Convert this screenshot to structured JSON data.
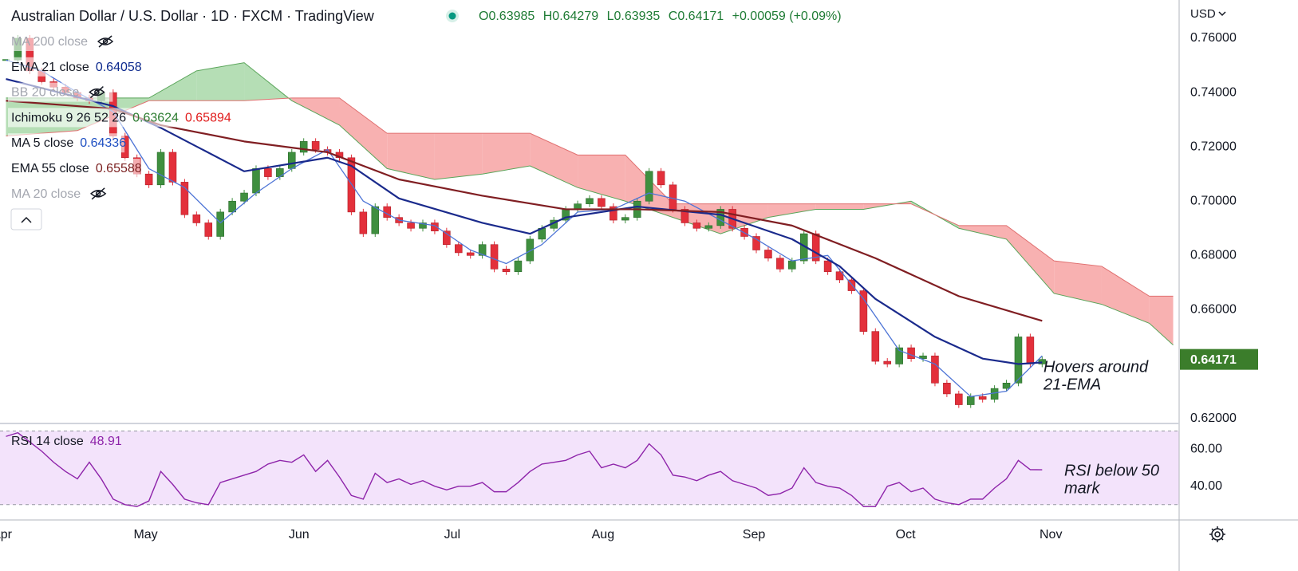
{
  "header": {
    "title": "Australian Dollar / U.S. Dollar · 1D · FXCM · TradingView",
    "ohlc": [
      "O0.63985",
      "H0.64279",
      "L0.63935",
      "C0.64171",
      "+0.00059 (+0.09%)"
    ],
    "currency": "USD"
  },
  "legend": [
    {
      "name": "MA 200 close",
      "hidden": true
    },
    {
      "name": "EMA 21 close",
      "values": [
        "0.64058"
      ],
      "colors": [
        "#0d2a8e"
      ]
    },
    {
      "name": "BB 20 close",
      "hidden": true
    },
    {
      "name": "Ichimoku 9 26 52 26",
      "values": [
        "0.63624",
        "0.65894"
      ],
      "colors": [
        "#2e7d32",
        "#e01b1b"
      ]
    },
    {
      "name": "MA 5 close",
      "values": [
        "0.64336"
      ],
      "colors": [
        "#1e4fc2"
      ]
    },
    {
      "name": "EMA 55 close",
      "values": [
        "0.65588"
      ],
      "colors": [
        "#7b1f1f"
      ]
    },
    {
      "name": "MA 20 close",
      "hidden": true
    }
  ],
  "chart_data": [
    {
      "type": "candlestick",
      "categories": [
        null,
        null,
        null,
        null,
        null,
        null,
        null,
        null,
        null,
        null,
        null,
        null,
        null,
        null,
        null,
        null,
        null,
        null,
        null,
        null,
        null,
        null,
        null,
        null,
        null,
        null,
        null,
        null,
        null,
        null,
        null,
        null,
        null,
        null,
        null,
        null,
        null,
        null,
        null,
        null,
        null,
        null,
        null,
        null,
        null,
        null,
        null,
        null,
        null,
        null,
        null,
        null,
        null,
        null,
        null,
        null,
        null,
        null,
        null,
        null,
        null,
        null,
        null,
        null,
        null,
        null,
        null,
        null,
        null,
        null,
        null,
        null,
        null,
        null,
        null,
        null,
        null,
        null,
        null,
        null,
        null,
        null,
        null,
        null,
        null,
        null,
        null,
        null
      ],
      "close": [
        0.752,
        0.76,
        0.748,
        0.744,
        0.742,
        0.74,
        0.738,
        0.737,
        0.74,
        0.724,
        0.716,
        0.71,
        0.706,
        0.718,
        0.707,
        0.695,
        0.692,
        0.687,
        0.696,
        0.7,
        0.703,
        0.712,
        0.709,
        0.712,
        0.718,
        0.722,
        0.719,
        0.718,
        0.716,
        0.696,
        0.688,
        0.698,
        0.694,
        0.692,
        0.69,
        0.692,
        0.689,
        0.684,
        0.681,
        0.68,
        0.684,
        0.675,
        0.674,
        0.678,
        0.686,
        0.69,
        0.693,
        0.697,
        0.699,
        0.701,
        0.698,
        0.693,
        0.694,
        0.7,
        0.711,
        0.706,
        0.697,
        0.692,
        0.69,
        0.691,
        0.697,
        0.69,
        0.687,
        0.682,
        0.679,
        0.675,
        0.678,
        0.688,
        0.678,
        0.674,
        0.671,
        0.667,
        0.652,
        0.641,
        0.64,
        0.646,
        0.642,
        0.643,
        0.633,
        0.629,
        0.625,
        0.628,
        0.627,
        0.631,
        0.633,
        0.65,
        0.64,
        0.64171
      ],
      "up_color": "#3f8f3f",
      "down_color": "#e3303b",
      "xlim": [
        -0.5,
        98.5
      ],
      "xticks": [
        {
          "value": -0.33,
          "label": "Apr"
        },
        {
          "value": 11.73,
          "label": "May"
        },
        {
          "value": 24.6,
          "label": "Jun"
        },
        {
          "value": 37.47,
          "label": "Jul"
        },
        {
          "value": 50.13,
          "label": "Aug"
        },
        {
          "value": 62.8,
          "label": "Sep"
        },
        {
          "value": 75.53,
          "label": "Oct"
        },
        {
          "value": 87.73,
          "label": "Nov"
        }
      ],
      "ylim": [
        0.6184,
        0.7741
      ],
      "yticks": [
        {
          "value": 0.76,
          "label": "0.76000"
        },
        {
          "value": 0.74,
          "label": "0.74000"
        },
        {
          "value": 0.72,
          "label": "0.72000"
        },
        {
          "value": 0.7,
          "label": "0.70000"
        },
        {
          "value": 0.68,
          "label": "0.68000"
        },
        {
          "value": 0.66,
          "label": "0.66000"
        },
        {
          "value": 0.62,
          "label": "0.62000"
        }
      ],
      "last_price_label": "0.64171",
      "series": [
        {
          "color": "#4d74d6",
          "width": 1.3,
          "x": [
            0,
            3,
            6,
            9,
            12,
            15,
            18,
            21,
            24,
            27,
            30,
            33,
            36,
            39,
            42,
            45,
            48,
            51,
            54,
            57,
            60,
            63,
            66,
            69,
            72,
            75,
            78,
            81,
            84,
            87
          ],
          "values": [
            0.752,
            0.748,
            0.74,
            0.733,
            0.712,
            0.705,
            0.692,
            0.703,
            0.712,
            0.719,
            0.7,
            0.693,
            0.691,
            0.682,
            0.677,
            0.684,
            0.696,
            0.697,
            0.703,
            0.7,
            0.693,
            0.686,
            0.678,
            0.68,
            0.664,
            0.645,
            0.64,
            0.628,
            0.63,
            0.643
          ]
        },
        {
          "color": "#1a2a8c",
          "width": 2.2,
          "x": [
            0,
            9,
            13,
            20,
            27,
            29,
            33,
            40,
            44,
            47,
            53,
            60,
            66,
            70,
            73,
            78,
            82,
            85,
            87
          ],
          "values": [
            0.745,
            0.735,
            0.727,
            0.711,
            0.716,
            0.713,
            0.701,
            0.692,
            0.688,
            0.694,
            0.698,
            0.695,
            0.686,
            0.676,
            0.664,
            0.65,
            0.642,
            0.64,
            0.6406
          ]
        },
        {
          "color": "#801e22",
          "width": 2.2,
          "x": [
            0,
            9,
            13,
            20,
            27,
            33,
            40,
            47,
            53,
            60,
            66,
            73,
            80,
            87
          ],
          "values": [
            0.737,
            0.734,
            0.728,
            0.722,
            0.718,
            0.708,
            0.702,
            0.697,
            0.697,
            0.696,
            0.691,
            0.679,
            0.665,
            0.6559
          ]
        }
      ],
      "ichimoku": {
        "x": [
          0,
          6,
          12,
          16,
          20,
          24,
          28,
          32,
          36,
          40,
          44,
          48,
          52,
          56,
          60,
          64,
          68,
          72,
          76,
          80,
          84,
          88,
          92,
          96,
          98
        ],
        "span_a": [
          0.738,
          0.738,
          0.738,
          0.748,
          0.751,
          0.737,
          0.728,
          0.712,
          0.708,
          0.71,
          0.713,
          0.705,
          0.7,
          0.694,
          0.688,
          0.694,
          0.697,
          0.697,
          0.7,
          0.69,
          0.686,
          0.666,
          0.662,
          0.655,
          0.647
        ],
        "span_b": [
          0.724,
          0.726,
          0.737,
          0.737,
          0.737,
          0.738,
          0.738,
          0.725,
          0.725,
          0.725,
          0.725,
          0.717,
          0.717,
          0.699,
          0.699,
          0.699,
          0.699,
          0.699,
          0.699,
          0.691,
          0.691,
          0.678,
          0.676,
          0.665,
          0.665
        ],
        "up_color": "#a8d8a8",
        "down_color": "#f7a3a3",
        "a_color": "#5aa55a",
        "b_color": "#e07070"
      },
      "annotation": [
        "Hovers around",
        "21-EMA"
      ]
    },
    {
      "type": "line",
      "name": "RSI 14 close",
      "value_label": "48.91",
      "color": "#8e24aa",
      "values": [
        67,
        69,
        64,
        59,
        53,
        48,
        44,
        53,
        44,
        33,
        30,
        29,
        32,
        48,
        41,
        33,
        31,
        30,
        42,
        44,
        46,
        48,
        52,
        54,
        53,
        57,
        48,
        54,
        45,
        35,
        33,
        47,
        42,
        44,
        41,
        43,
        40,
        38,
        40,
        40,
        42,
        37,
        37,
        42,
        48,
        52,
        53,
        54,
        57,
        59,
        50,
        52,
        50,
        54,
        63,
        57,
        46,
        45,
        43,
        46,
        48,
        43,
        41,
        39,
        35,
        36,
        39,
        50,
        42,
        40,
        39,
        35,
        29,
        29,
        40,
        42,
        37,
        39,
        33,
        31,
        30,
        33,
        33,
        39,
        44,
        54,
        49,
        48.91
      ],
      "xlim": [
        -0.5,
        98.5
      ],
      "ylim": [
        21.7,
        73.6
      ],
      "yticks": [
        {
          "value": 60,
          "label": "60.00"
        },
        {
          "value": 40,
          "label": "40.00"
        }
      ],
      "band": [
        30,
        70
      ],
      "band_color": "#f3e3fb",
      "annotation": [
        "RSI below 50",
        "mark"
      ]
    }
  ]
}
